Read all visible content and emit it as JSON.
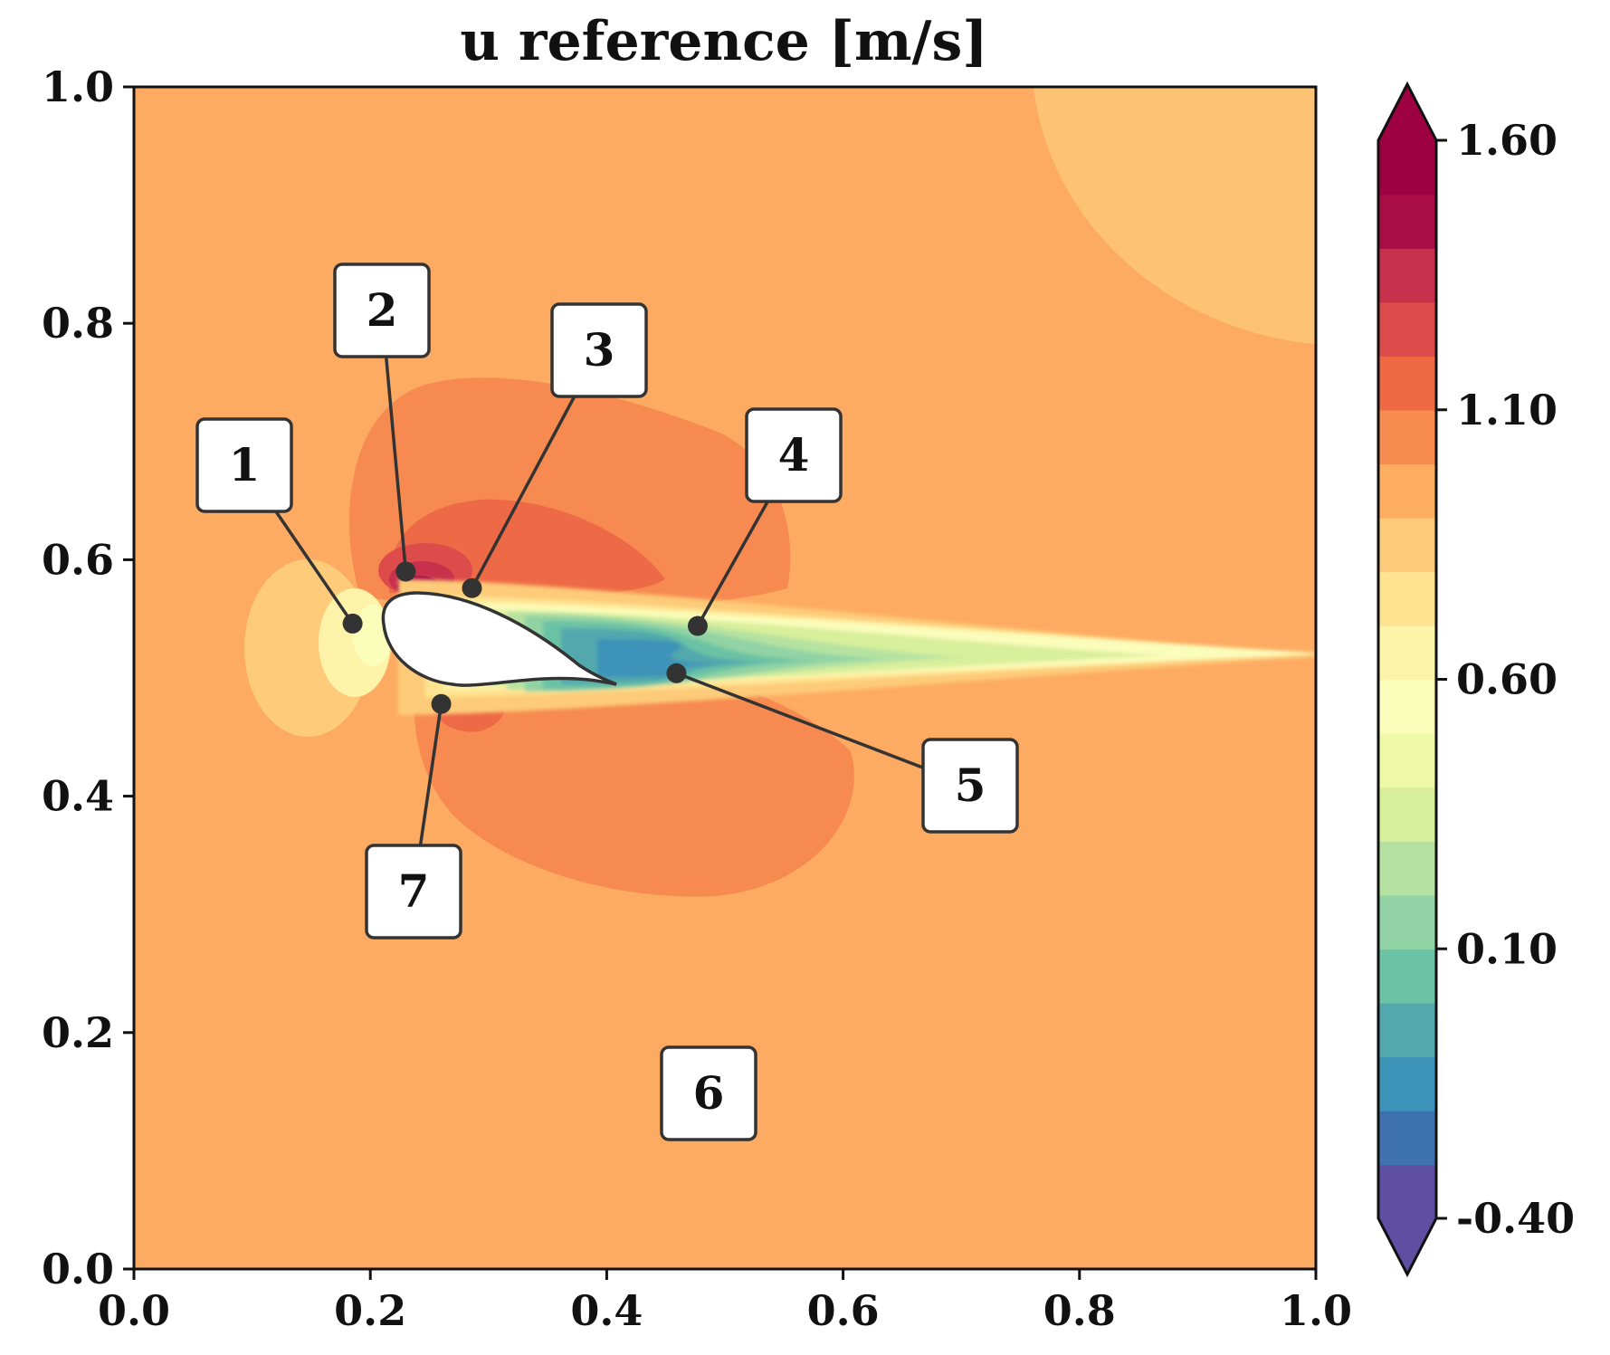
{
  "chart_data": {
    "type": "heatmap",
    "subtype": "filled-contour",
    "title": "u reference [m/s]",
    "xlim": [
      0.0,
      1.0
    ],
    "ylim": [
      0.0,
      1.0
    ],
    "xticks": [
      0.0,
      0.2,
      0.4,
      0.6,
      0.8,
      1.0
    ],
    "yticks": [
      0.0,
      0.2,
      0.4,
      0.6,
      0.8,
      1.0
    ],
    "xtick_labels": [
      "0.0",
      "0.2",
      "0.4",
      "0.6",
      "0.8",
      "1.0"
    ],
    "ytick_labels": [
      "0.0",
      "0.2",
      "0.4",
      "0.6",
      "0.8",
      "1.0"
    ],
    "colorbar": {
      "ticks": [
        1.6,
        1.1,
        0.6,
        0.1,
        -0.4
      ],
      "tick_labels": [
        "1.60",
        "1.10",
        "0.60",
        "0.10",
        "-0.40"
      ],
      "range": [
        -0.4,
        1.6
      ],
      "extend": "both",
      "colormap": "Spectral_r",
      "levels": [
        -0.4,
        -0.3,
        -0.2,
        -0.1,
        0.0,
        0.1,
        0.2,
        0.3,
        0.4,
        0.5,
        0.6,
        0.7,
        0.8,
        0.9,
        1.0,
        1.1,
        1.2,
        1.3,
        1.4,
        1.5,
        1.6
      ],
      "level_colors": [
        "#5e4fa2",
        "#3f72b1",
        "#3d93b8",
        "#52a8ad",
        "#6bc2a4",
        "#91d3a4",
        "#b6e2a1",
        "#d8ef9b",
        "#eef9a6",
        "#fbfdbb",
        "#fef3a9",
        "#fee391",
        "#fdcb79",
        "#fdae61",
        "#f88b50",
        "#ef6945",
        "#dd4c4a",
        "#c9304c",
        "#a90d44",
        "#9e0142"
      ],
      "under_color": "#5e4fa2",
      "over_color": "#9e0142"
    },
    "colors": {
      "background": "#fdab62",
      "upper_right_region": "#fdc273",
      "lobe_medium": "#f68a50",
      "lobe_strong": "#ee6945",
      "airfoil_fill": "#ffffff",
      "outline": "#333333"
    },
    "annotations": [
      {
        "label": "1",
        "point": [
          0.185,
          0.546
        ]
      },
      {
        "label": "2",
        "point": [
          0.23,
          0.59
        ]
      },
      {
        "label": "3",
        "point": [
          0.286,
          0.576
        ]
      },
      {
        "label": "4",
        "point": [
          0.477,
          0.544
        ]
      },
      {
        "label": "5",
        "point": [
          0.459,
          0.504
        ]
      },
      {
        "label": "6",
        "point": null
      },
      {
        "label": "7",
        "point": [
          0.26,
          0.478
        ]
      }
    ],
    "airfoil": {
      "leading_edge": [
        0.212,
        0.548
      ],
      "trailing_edge": [
        0.408,
        0.496
      ]
    }
  }
}
